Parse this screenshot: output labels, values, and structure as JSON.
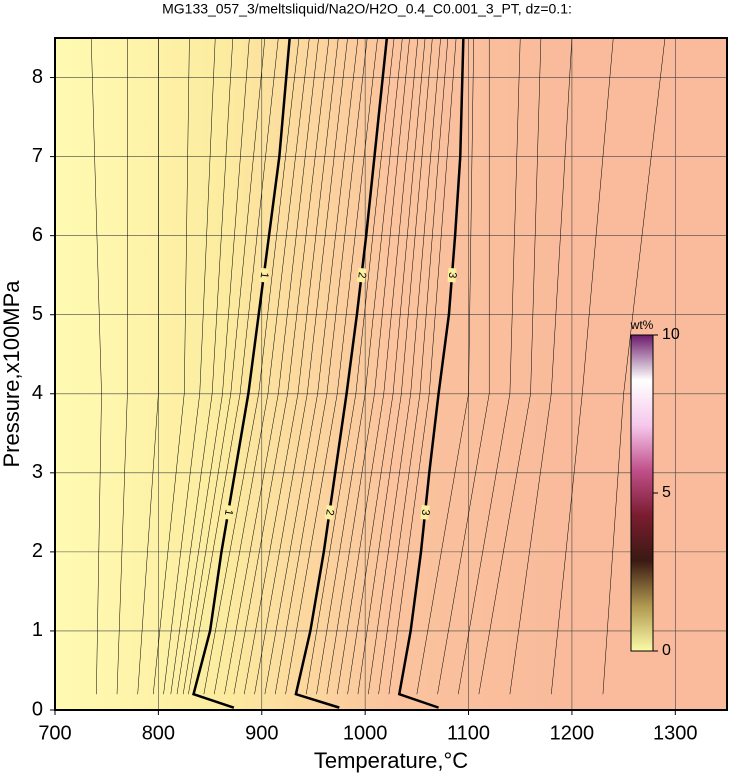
{
  "chart_data": {
    "type": "contour",
    "title": "MG133_057_3/meltsliquid/Na2O/H2O_0.4_C0.001_3_PT, dz=0.1:",
    "x_label": "Temperature,°C",
    "y_label": "Pressure,x100MPa",
    "xlim": [
      700,
      1350
    ],
    "ylim": [
      0,
      8.5
    ],
    "xticks": [
      700,
      800,
      900,
      1000,
      1100,
      1200,
      1300
    ],
    "yticks": [
      0,
      1,
      2,
      3,
      4,
      5,
      6,
      7,
      8
    ],
    "grid": true,
    "background_colors": [
      "#fffbb2",
      "#fcec9f",
      "#fbc39e",
      "#f9bb9b",
      "#f9bb9b"
    ],
    "series": [
      {
        "name": "1",
        "color": "#000000",
        "x": [
          873,
          834,
          850,
          861,
          874,
          887,
          897,
          907,
          917,
          927
        ],
        "values": [
          0.03,
          0.2,
          1,
          2,
          3,
          4,
          5,
          6,
          7,
          8.5
        ]
      },
      {
        "name": "2",
        "color": "#000000",
        "x": [
          975,
          933,
          947,
          960,
          971,
          982,
          992,
          1001,
          1009,
          1021
        ],
        "values": [
          0.03,
          0.2,
          1,
          2,
          3,
          4,
          5,
          6,
          7,
          8.5
        ]
      },
      {
        "name": "3",
        "color": "#000000",
        "x": [
          1071,
          1033,
          1044,
          1054,
          1062,
          1071,
          1081,
          1087,
          1092,
          1095
        ],
        "values": [
          0.03,
          0.2,
          1,
          2,
          3,
          4,
          5,
          6,
          7,
          8.5
        ]
      }
    ],
    "minor_contours": {
      "y": [
        0.2,
        4,
        8.5
      ],
      "x": [
        [
          740,
          745,
          735
        ],
        [
          760,
          770,
          770
        ],
        [
          780,
          800,
          800
        ],
        [
          795,
          825,
          830
        ],
        [
          805,
          840,
          855
        ],
        [
          812,
          852,
          872
        ],
        [
          818,
          862,
          888
        ],
        [
          824,
          870,
          903
        ],
        [
          829,
          879,
          916
        ],
        [
          844,
          897,
          936
        ],
        [
          854,
          906,
          946
        ],
        [
          864,
          916,
          955
        ],
        [
          873,
          925,
          965
        ],
        [
          883,
          935,
          974
        ],
        [
          893,
          944,
          983
        ],
        [
          903,
          954,
          993
        ],
        [
          913,
          963,
          1002
        ],
        [
          923,
          973,
          1012
        ],
        [
          943,
          991,
          1028
        ],
        [
          953,
          1000,
          1036
        ],
        [
          963,
          1009,
          1043
        ],
        [
          973,
          1018,
          1051
        ],
        [
          983,
          1027,
          1058
        ],
        [
          993,
          1035,
          1065
        ],
        [
          1003,
          1044,
          1073
        ],
        [
          1013,
          1053,
          1080
        ],
        [
          1023,
          1062,
          1088
        ],
        [
          1050,
          1100,
          1105
        ],
        [
          1070,
          1120,
          1120
        ],
        [
          1090,
          1140,
          1150
        ],
        [
          1110,
          1160,
          1170
        ],
        [
          1140,
          1180,
          1200
        ],
        [
          1180,
          1210,
          1240
        ],
        [
          1230,
          1250,
          1290
        ]
      ]
    },
    "colorbar": {
      "label": "wt%",
      "range": [
        0,
        10
      ],
      "ticks": [
        0,
        5,
        10
      ],
      "colors": [
        "#fbfba8",
        "#b09850",
        "#3a1a12",
        "#7a1c30",
        "#c0508a",
        "#f6c8ec",
        "#ffffff",
        "#6a1a6a"
      ]
    }
  }
}
